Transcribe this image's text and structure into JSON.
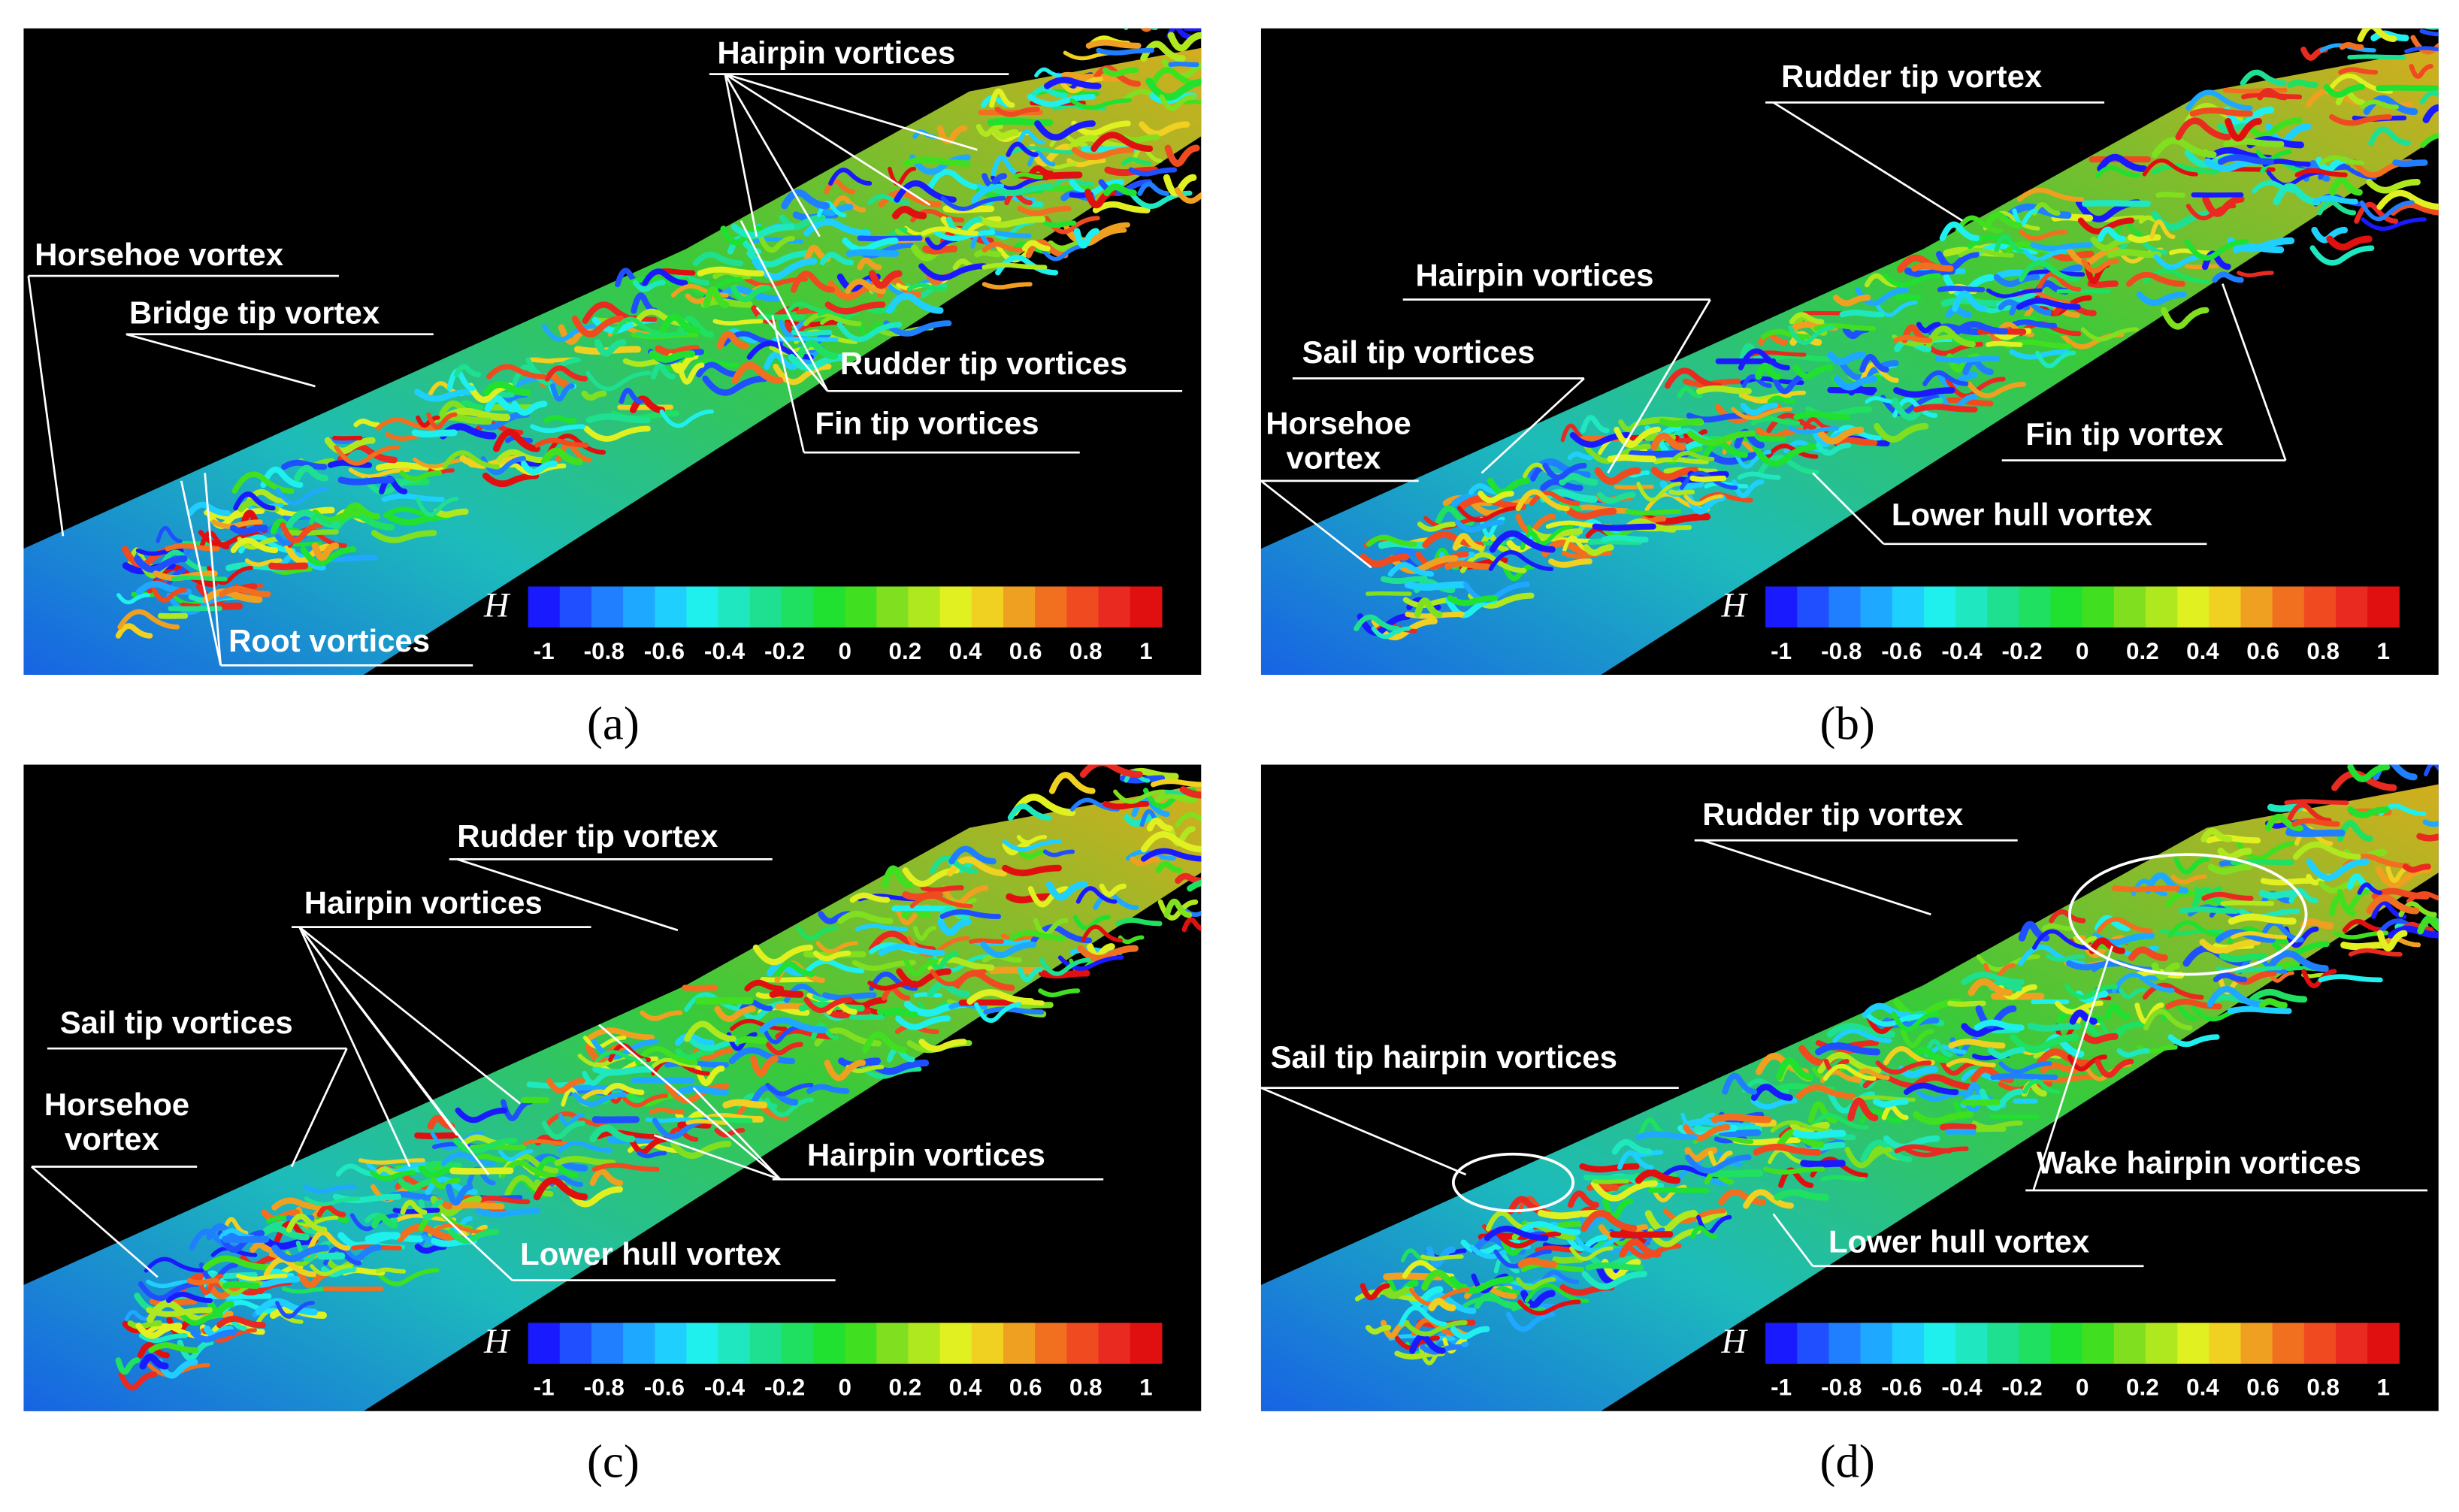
{
  "panels": [
    {
      "label": "(a)",
      "annotations": [
        {
          "lines": [
            "Hairpin vortices"
          ]
        },
        {
          "lines": [
            "Horsehoe vortex"
          ]
        },
        {
          "lines": [
            "Bridge tip vortex"
          ]
        },
        {
          "lines": [
            "Rudder tip vortices"
          ]
        },
        {
          "lines": [
            "Fin tip vortices"
          ]
        },
        {
          "lines": [
            "Root vortices"
          ]
        }
      ],
      "colorbar": {
        "label": "H",
        "ticks": [
          -1,
          -0.8,
          -0.6,
          -0.4,
          -0.2,
          0,
          0.2,
          0.4,
          0.6,
          0.8,
          1
        ]
      }
    },
    {
      "label": "(b)",
      "annotations": [
        {
          "lines": [
            "Rudder tip vortex"
          ]
        },
        {
          "lines": [
            "Hairpin vortices"
          ]
        },
        {
          "lines": [
            "Sail tip vortices"
          ]
        },
        {
          "lines": [
            "Horsehoe",
            "vortex"
          ]
        },
        {
          "lines": [
            "Fin tip vortex"
          ]
        },
        {
          "lines": [
            "Lower hull vortex"
          ]
        }
      ],
      "colorbar": {
        "label": "H",
        "ticks": [
          -1,
          -0.8,
          -0.6,
          -0.4,
          -0.2,
          0,
          0.2,
          0.4,
          0.6,
          0.8,
          1
        ]
      }
    },
    {
      "label": "(c)",
      "annotations": [
        {
          "lines": [
            "Rudder tip vortex"
          ]
        },
        {
          "lines": [
            "Hairpin vortices"
          ]
        },
        {
          "lines": [
            "Sail tip vortices"
          ]
        },
        {
          "lines": [
            "Horsehoe",
            "vortex"
          ]
        },
        {
          "lines": [
            "Hairpin vortices"
          ]
        },
        {
          "lines": [
            "Lower hull vortex"
          ]
        }
      ],
      "colorbar": {
        "label": "H",
        "ticks": [
          -1,
          -0.8,
          -0.6,
          -0.4,
          -0.2,
          0,
          0.2,
          0.4,
          0.6,
          0.8,
          1
        ]
      }
    },
    {
      "label": "(d)",
      "annotations": [
        {
          "lines": [
            "Rudder tip vortex"
          ]
        },
        {
          "lines": [
            "Sail tip hairpin vortices"
          ]
        },
        {
          "lines": [
            "Wake hairpin vortices"
          ]
        },
        {
          "lines": [
            "Lower hull vortex"
          ]
        }
      ],
      "colorbar": {
        "label": "H",
        "ticks": [
          -1,
          -0.8,
          -0.6,
          -0.4,
          -0.2,
          0,
          0.2,
          0.4,
          0.6,
          0.8,
          1
        ]
      }
    }
  ]
}
